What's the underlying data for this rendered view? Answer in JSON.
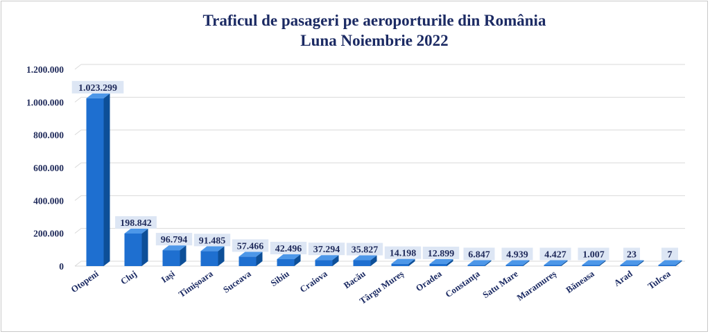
{
  "colors": {
    "title": "#1b2a63",
    "bar_front": "#1e6fd0",
    "bar_side": "#0d4f98",
    "bar_top": "#4d97e8",
    "label_bg": "#dde6f4",
    "label_text": "#1f2a5a",
    "category_text": "#1b2a63",
    "grid": "#d9d9d9"
  },
  "chart_data": {
    "type": "bar",
    "title": "Traficul de pasageri pe aeroporturile din România",
    "subtitle": "Luna Noiembrie 2022",
    "xlabel": "",
    "ylabel": "",
    "ylim": [
      0,
      1200000
    ],
    "yticks": [
      0,
      200000,
      400000,
      600000,
      800000,
      1000000,
      1200000
    ],
    "ytick_labels": [
      "0",
      "200.000",
      "400.000",
      "600.000",
      "800.000",
      "1.000.000",
      "1.200.000"
    ],
    "grid": true,
    "categories": [
      "Otopeni",
      "Cluj",
      "Iași",
      "Timișoara",
      "Suceava",
      "Sibiu",
      "Craiova",
      "Bacău",
      "Târgu Mureș",
      "Oradea",
      "Constanța",
      "Satu Mare",
      "Maramureș",
      "Băneasa",
      "Arad",
      "Tulcea"
    ],
    "values": [
      1023299,
      198842,
      96794,
      91485,
      57466,
      42496,
      37294,
      35827,
      14198,
      12899,
      6847,
      4939,
      4427,
      1007,
      23,
      7
    ],
    "value_labels": [
      "1.023.299",
      "198.842",
      "96.794",
      "91.485",
      "57.466",
      "42.496",
      "37.294",
      "35.827",
      "14.198",
      "12.899",
      "6.847",
      "4.939",
      "4.427",
      "1.007",
      "23",
      "7"
    ]
  }
}
